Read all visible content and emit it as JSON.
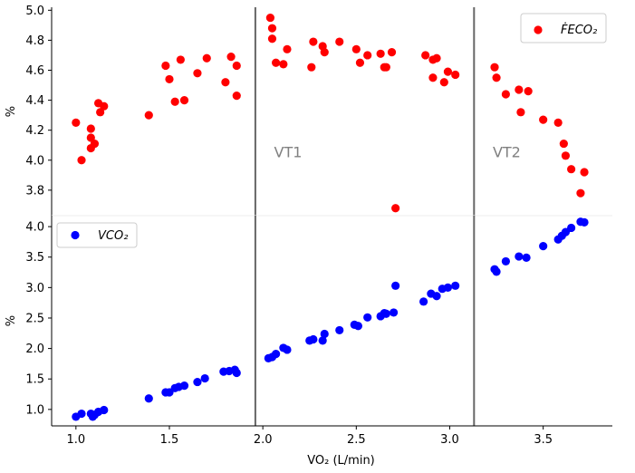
{
  "chart_data": [
    {
      "type": "scatter",
      "panel": "top",
      "ylabel": "%",
      "xlim": [
        0.87,
        3.87
      ],
      "ylim": [
        3.63,
        5.02
      ],
      "yticks": [
        "3.8",
        "4.0",
        "4.2",
        "4.4",
        "4.6",
        "4.8",
        "5.0"
      ],
      "grid": false,
      "legend_position": "top-right",
      "series": [
        {
          "name": "FECO2",
          "legend_label": "ḞECO₂",
          "color": "#ff0000",
          "points": [
            [
              1.0,
              4.25
            ],
            [
              1.03,
              4.0
            ],
            [
              1.08,
              4.21
            ],
            [
              1.08,
              4.15
            ],
            [
              1.08,
              4.08
            ],
            [
              1.1,
              4.11
            ],
            [
              1.12,
              4.38
            ],
            [
              1.13,
              4.32
            ],
            [
              1.15,
              4.36
            ],
            [
              1.39,
              4.3
            ],
            [
              1.48,
              4.63
            ],
            [
              1.5,
              4.54
            ],
            [
              1.53,
              4.39
            ],
            [
              1.56,
              4.67
            ],
            [
              1.58,
              4.4
            ],
            [
              1.65,
              4.58
            ],
            [
              1.7,
              4.68
            ],
            [
              1.8,
              4.52
            ],
            [
              1.83,
              4.69
            ],
            [
              1.86,
              4.63
            ],
            [
              1.86,
              4.43
            ],
            [
              2.04,
              4.95
            ],
            [
              2.05,
              4.88
            ],
            [
              2.05,
              4.81
            ],
            [
              2.07,
              4.65
            ],
            [
              2.11,
              4.64
            ],
            [
              2.13,
              4.74
            ],
            [
              2.26,
              4.62
            ],
            [
              2.27,
              4.79
            ],
            [
              2.32,
              4.76
            ],
            [
              2.33,
              4.72
            ],
            [
              2.41,
              4.79
            ],
            [
              2.5,
              4.74
            ],
            [
              2.52,
              4.65
            ],
            [
              2.56,
              4.7
            ],
            [
              2.63,
              4.71
            ],
            [
              2.65,
              4.62
            ],
            [
              2.66,
              4.62
            ],
            [
              2.69,
              4.72
            ],
            [
              2.71,
              3.68
            ],
            [
              2.87,
              4.7
            ],
            [
              2.91,
              4.55
            ],
            [
              2.91,
              4.67
            ],
            [
              2.93,
              4.68
            ],
            [
              2.97,
              4.52
            ],
            [
              2.99,
              4.59
            ],
            [
              3.03,
              4.57
            ],
            [
              3.24,
              4.62
            ],
            [
              3.25,
              4.55
            ],
            [
              3.3,
              4.44
            ],
            [
              3.37,
              4.47
            ],
            [
              3.38,
              4.32
            ],
            [
              3.42,
              4.46
            ],
            [
              3.5,
              4.27
            ],
            [
              3.58,
              4.25
            ],
            [
              3.61,
              4.11
            ],
            [
              3.62,
              4.03
            ],
            [
              3.65,
              3.94
            ],
            [
              3.7,
              3.78
            ],
            [
              3.72,
              3.92
            ]
          ]
        }
      ],
      "annotations": [
        {
          "text": "VT1",
          "x": 2.06,
          "y": 4.02
        },
        {
          "text": "VT2",
          "x": 3.23,
          "y": 4.02
        }
      ],
      "vlines": [
        1.96,
        3.13
      ]
    },
    {
      "type": "scatter",
      "panel": "bottom",
      "xlabel": "VO₂ (L/min)",
      "ylabel": "%",
      "xlim": [
        0.87,
        3.87
      ],
      "ylim": [
        0.73,
        4.18
      ],
      "xticks": [
        "1.0",
        "1.5",
        "2.0",
        "2.5",
        "3.0",
        "3.5"
      ],
      "yticks": [
        "1.0",
        "1.5",
        "2.0",
        "2.5",
        "3.0",
        "3.5",
        "4.0"
      ],
      "grid": false,
      "legend_position": "top-left",
      "series": [
        {
          "name": "VCO2",
          "legend_label": "VCO₂",
          "color": "#0000ff",
          "points": [
            [
              1.0,
              0.88
            ],
            [
              1.03,
              0.93
            ],
            [
              1.08,
              0.93
            ],
            [
              1.09,
              0.88
            ],
            [
              1.1,
              0.91
            ],
            [
              1.12,
              0.96
            ],
            [
              1.15,
              0.99
            ],
            [
              1.39,
              1.18
            ],
            [
              1.48,
              1.28
            ],
            [
              1.5,
              1.28
            ],
            [
              1.53,
              1.35
            ],
            [
              1.55,
              1.37
            ],
            [
              1.58,
              1.39
            ],
            [
              1.65,
              1.45
            ],
            [
              1.69,
              1.51
            ],
            [
              1.79,
              1.62
            ],
            [
              1.82,
              1.63
            ],
            [
              1.85,
              1.65
            ],
            [
              1.86,
              1.6
            ],
            [
              2.03,
              1.84
            ],
            [
              2.05,
              1.86
            ],
            [
              2.07,
              1.91
            ],
            [
              2.11,
              2.01
            ],
            [
              2.13,
              1.98
            ],
            [
              2.25,
              2.13
            ],
            [
              2.27,
              2.15
            ],
            [
              2.32,
              2.13
            ],
            [
              2.33,
              2.24
            ],
            [
              2.41,
              2.3
            ],
            [
              2.49,
              2.39
            ],
            [
              2.51,
              2.37
            ],
            [
              2.56,
              2.51
            ],
            [
              2.63,
              2.53
            ],
            [
              2.65,
              2.58
            ],
            [
              2.66,
              2.57
            ],
            [
              2.7,
              2.59
            ],
            [
              2.71,
              3.03
            ],
            [
              2.86,
              2.77
            ],
            [
              2.9,
              2.9
            ],
            [
              2.93,
              2.86
            ],
            [
              2.96,
              2.98
            ],
            [
              2.99,
              3.0
            ],
            [
              3.03,
              3.03
            ],
            [
              3.24,
              3.3
            ],
            [
              3.25,
              3.26
            ],
            [
              3.3,
              3.43
            ],
            [
              3.37,
              3.51
            ],
            [
              3.41,
              3.49
            ],
            [
              3.5,
              3.68
            ],
            [
              3.58,
              3.79
            ],
            [
              3.6,
              3.85
            ],
            [
              3.62,
              3.91
            ],
            [
              3.65,
              3.98
            ],
            [
              3.7,
              4.08
            ],
            [
              3.72,
              4.07
            ]
          ]
        }
      ],
      "vlines": [
        1.96,
        3.13
      ]
    }
  ]
}
